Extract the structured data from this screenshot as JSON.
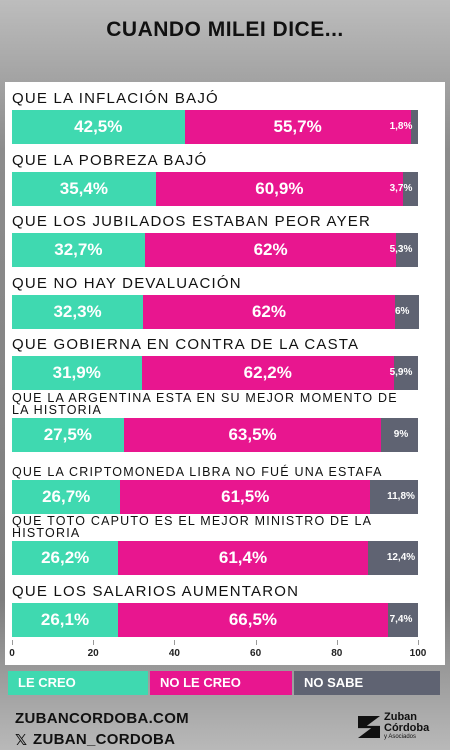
{
  "chart_data": {
    "type": "stacked-bar-horizontal",
    "title": "CUANDO MILEI DICE...",
    "categories": [
      "QUE LA INFLACIÓN BAJÓ",
      "QUE LA POBREZA BAJÓ",
      "QUE LOS JUBILADOS ESTABAN PEOR AYER",
      "QUE NO HAY DEVALUACIÓN",
      "QUE GOBIERNA EN CONTRA DE LA CASTA",
      "QUE LA ARGENTINA ESTA EN SU MEJOR MOMENTO DE LA HISTORIA",
      "QUE LA CRIPTOMONEDA LIBRA NO FUÉ UNA ESTAFA",
      "QUE TOTO CAPUTO ES EL MEJOR MINISTRO DE LA HISTORIA",
      "QUE LOS SALARIOS AUMENTARON"
    ],
    "series": [
      {
        "name": "LE CREO",
        "color": "#3fd9b0",
        "values": [
          42.5,
          35.4,
          32.7,
          32.3,
          31.9,
          27.5,
          26.7,
          26.2,
          26.1
        ],
        "value_labels": [
          "42,5%",
          "35,4%",
          "32,7%",
          "32,3%",
          "31,9%",
          "27,5%",
          "26,7%",
          "26,2%",
          "26,1%"
        ]
      },
      {
        "name": "NO LE CREO",
        "color": "#e8168f",
        "values": [
          55.7,
          60.9,
          62,
          62,
          62.2,
          63.5,
          61.5,
          61.4,
          66.5
        ],
        "value_labels": [
          "55,7%",
          "60,9%",
          "62%",
          "62%",
          "62,2%",
          "63,5%",
          "61,5%",
          "61,4%",
          "66,5%"
        ]
      },
      {
        "name": "NO SABE",
        "color": "#5f6372",
        "values": [
          1.8,
          3.7,
          5.3,
          6,
          5.9,
          9,
          11.8,
          12.4,
          7.4
        ],
        "value_labels": [
          "1,8%",
          "3,7%",
          "5,3%",
          "6%",
          "5,9%",
          "9%",
          "11,8%",
          "12,4%",
          "7,4%"
        ]
      }
    ],
    "xlim": [
      0,
      100
    ],
    "xticks": [
      0,
      20,
      40,
      60,
      80,
      100
    ]
  },
  "footer": {
    "website": "ZUBANCORDOBA.COM",
    "social": "ZUBAN_CORDOBA",
    "logo": [
      "Zuban",
      "Córdoba",
      "y Asociados"
    ]
  }
}
